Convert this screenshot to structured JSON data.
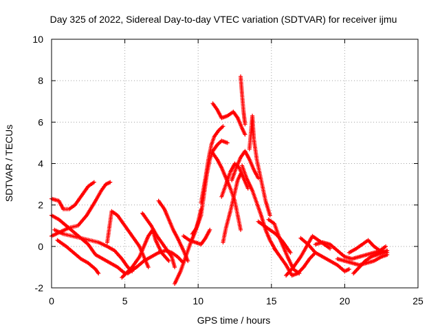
{
  "chart_data": {
    "type": "scatter",
    "title": "Day 325 of 2022, Sidereal Day-to-day VTEC variation (SDTVAR) for receiver ijmu",
    "xlabel": "GPS time / hours",
    "ylabel": "SDTVAR / TECUs",
    "xlim": [
      0,
      25
    ],
    "ylim": [
      -2,
      10
    ],
    "xticks": [
      0,
      5,
      10,
      15,
      20,
      25
    ],
    "yticks": [
      -2,
      0,
      2,
      4,
      6,
      8,
      10
    ],
    "grid": true,
    "marker": "+",
    "color": "#ff0000",
    "series": [
      {
        "name": "SDTVAR",
        "tracks": [
          [
            [
              0.0,
              2.3
            ],
            [
              0.5,
              2.2
            ],
            [
              0.8,
              1.8
            ],
            [
              1.2,
              1.8
            ],
            [
              1.6,
              2.0
            ],
            [
              2.0,
              2.4
            ],
            [
              2.5,
              2.9
            ],
            [
              2.9,
              3.1
            ]
          ],
          [
            [
              0.0,
              1.5
            ],
            [
              0.5,
              1.3
            ],
            [
              1.0,
              1.0
            ],
            [
              1.5,
              0.7
            ],
            [
              2.0,
              0.4
            ],
            [
              2.5,
              0.1
            ],
            [
              3.0,
              -0.4
            ],
            [
              3.5,
              -0.6
            ],
            [
              4.0,
              -0.8
            ],
            [
              4.5,
              -1.0
            ],
            [
              5.0,
              -1.3
            ]
          ],
          [
            [
              0.0,
              0.5
            ],
            [
              0.6,
              0.7
            ],
            [
              1.2,
              0.9
            ],
            [
              1.8,
              1.0
            ],
            [
              2.4,
              1.5
            ],
            [
              3.0,
              2.2
            ],
            [
              3.4,
              2.7
            ],
            [
              3.7,
              3.0
            ],
            [
              4.0,
              3.1
            ]
          ],
          [
            [
              0.4,
              0.3
            ],
            [
              1.0,
              0.0
            ],
            [
              1.5,
              -0.3
            ],
            [
              2.0,
              -0.6
            ],
            [
              2.5,
              -0.8
            ],
            [
              3.0,
              -1.1
            ],
            [
              3.2,
              -1.3
            ]
          ],
          [
            [
              0.2,
              0.8
            ],
            [
              0.8,
              0.6
            ],
            [
              1.4,
              0.5
            ],
            [
              2.0,
              0.4
            ],
            [
              2.6,
              0.3
            ],
            [
              3.2,
              0.2
            ],
            [
              3.8,
              0.0
            ],
            [
              4.3,
              -0.2
            ],
            [
              4.8,
              -0.6
            ],
            [
              5.2,
              -1.0
            ],
            [
              5.5,
              -1.2
            ]
          ],
          [
            [
              3.8,
              0.2
            ],
            [
              4.1,
              1.7
            ],
            [
              4.5,
              1.5
            ],
            [
              5.0,
              1.0
            ],
            [
              5.5,
              0.5
            ],
            [
              6.0,
              0.0
            ],
            [
              6.3,
              -0.5
            ],
            [
              6.6,
              -1.0
            ]
          ],
          [
            [
              4.8,
              -1.5
            ],
            [
              5.5,
              -1.0
            ],
            [
              6.0,
              -0.5
            ],
            [
              6.3,
              0.0
            ],
            [
              6.6,
              0.5
            ],
            [
              6.9,
              0.8
            ],
            [
              7.1,
              0.3
            ],
            [
              7.5,
              -0.3
            ],
            [
              8.0,
              -0.7
            ]
          ],
          [
            [
              5.2,
              -1.3
            ],
            [
              5.8,
              -1.0
            ],
            [
              6.3,
              -0.7
            ],
            [
              6.8,
              -0.5
            ],
            [
              7.3,
              -0.3
            ],
            [
              7.8,
              -0.2
            ],
            [
              8.2,
              -0.3
            ],
            [
              8.6,
              -0.5
            ],
            [
              9.0,
              -0.8
            ]
          ],
          [
            [
              6.2,
              1.6
            ],
            [
              6.5,
              1.3
            ],
            [
              6.8,
              1.0
            ],
            [
              7.2,
              0.5
            ],
            [
              7.7,
              0.0
            ],
            [
              8.2,
              -0.5
            ],
            [
              8.4,
              -1.0
            ]
          ],
          [
            [
              7.3,
              2.2
            ],
            [
              7.7,
              1.8
            ],
            [
              8.0,
              1.3
            ],
            [
              8.3,
              0.8
            ],
            [
              8.6,
              0.4
            ],
            [
              9.0,
              -0.2
            ],
            [
              9.3,
              -0.7
            ]
          ],
          [
            [
              8.4,
              -1.8
            ],
            [
              8.8,
              -1.2
            ],
            [
              9.2,
              -0.4
            ],
            [
              9.5,
              0.2
            ],
            [
              9.8,
              0.7
            ],
            [
              10.0,
              1.2
            ],
            [
              10.2,
              1.8
            ]
          ],
          [
            [
              9.0,
              0.5
            ],
            [
              9.4,
              0.3
            ],
            [
              9.8,
              0.2
            ],
            [
              10.2,
              0.1
            ],
            [
              10.5,
              0.4
            ],
            [
              10.8,
              0.8
            ]
          ],
          [
            [
              9.6,
              0.6
            ],
            [
              9.9,
              0.9
            ],
            [
              10.2,
              1.5
            ],
            [
              10.4,
              2.5
            ],
            [
              10.6,
              3.5
            ],
            [
              10.8,
              4.2
            ],
            [
              11.0,
              4.6
            ],
            [
              11.3,
              4.9
            ],
            [
              11.6,
              5.1
            ],
            [
              12.0,
              5.0
            ]
          ],
          [
            [
              10.2,
              2.1
            ],
            [
              10.5,
              3.3
            ],
            [
              10.7,
              4.2
            ],
            [
              10.9,
              4.9
            ],
            [
              11.1,
              5.3
            ],
            [
              11.4,
              5.6
            ],
            [
              11.7,
              5.8
            ]
          ],
          [
            [
              11.0,
              6.9
            ],
            [
              11.3,
              6.6
            ],
            [
              11.6,
              6.2
            ],
            [
              12.0,
              6.3
            ],
            [
              12.4,
              6.5
            ],
            [
              12.7,
              6.2
            ],
            [
              13.0,
              5.7
            ],
            [
              13.2,
              5.4
            ]
          ],
          [
            [
              11.0,
              4.5
            ],
            [
              11.3,
              4.2
            ],
            [
              11.6,
              3.8
            ],
            [
              11.9,
              3.3
            ],
            [
              12.2,
              2.8
            ],
            [
              12.5,
              2.2
            ],
            [
              12.7,
              1.5
            ],
            [
              12.9,
              0.8
            ]
          ],
          [
            [
              11.6,
              2.4
            ],
            [
              11.9,
              3.0
            ],
            [
              12.2,
              3.6
            ],
            [
              12.5,
              4.0
            ],
            [
              12.8,
              3.8
            ],
            [
              13.1,
              3.3
            ],
            [
              13.4,
              2.8
            ]
          ],
          [
            [
              11.7,
              0.2
            ],
            [
              11.9,
              0.9
            ],
            [
              12.2,
              1.7
            ],
            [
              12.5,
              2.6
            ],
            [
              12.7,
              3.2
            ],
            [
              12.9,
              3.5
            ]
          ],
          [
            [
              12.3,
              3.2
            ],
            [
              12.6,
              3.8
            ],
            [
              12.9,
              4.3
            ],
            [
              13.2,
              4.6
            ],
            [
              13.5,
              4.2
            ],
            [
              13.8,
              3.7
            ],
            [
              14.1,
              3.3
            ]
          ],
          [
            [
              12.9,
              8.2
            ],
            [
              13.0,
              7.3
            ],
            [
              13.1,
              6.5
            ],
            [
              13.2,
              5.9
            ]
          ],
          [
            [
              13.5,
              4.7
            ],
            [
              13.6,
              5.5
            ],
            [
              13.7,
              6.3
            ],
            [
              13.8,
              5.2
            ],
            [
              14.0,
              4.2
            ],
            [
              14.3,
              3.2
            ],
            [
              14.6,
              2.2
            ],
            [
              14.9,
              1.5
            ]
          ],
          [
            [
              13.0,
              3.9
            ],
            [
              13.3,
              3.3
            ],
            [
              13.7,
              2.7
            ],
            [
              14.0,
              2.1
            ],
            [
              14.3,
              1.5
            ],
            [
              14.6,
              0.8
            ],
            [
              14.9,
              0.3
            ],
            [
              15.3,
              -0.2
            ]
          ],
          [
            [
              14.1,
              1.2
            ],
            [
              14.5,
              1.0
            ],
            [
              14.9,
              0.8
            ],
            [
              15.3,
              0.6
            ],
            [
              15.7,
              0.3
            ],
            [
              16.0,
              0.0
            ],
            [
              16.3,
              -0.3
            ]
          ],
          [
            [
              14.8,
              1.3
            ],
            [
              15.2,
              1.1
            ],
            [
              15.5,
              0.5
            ],
            [
              15.8,
              0.0
            ],
            [
              16.1,
              -0.5
            ],
            [
              16.5,
              -1.1
            ],
            [
              16.9,
              -1.3
            ]
          ],
          [
            [
              15.2,
              -0.1
            ],
            [
              15.6,
              -0.5
            ],
            [
              16.0,
              -0.9
            ],
            [
              16.4,
              -1.4
            ],
            [
              16.8,
              -1.3
            ],
            [
              17.2,
              -1.0
            ],
            [
              17.6,
              -0.6
            ],
            [
              18.0,
              -0.3
            ]
          ],
          [
            [
              16.0,
              -1.4
            ],
            [
              16.5,
              -1.0
            ],
            [
              17.0,
              -0.5
            ],
            [
              17.4,
              0.0
            ],
            [
              17.8,
              0.5
            ],
            [
              18.2,
              0.3
            ],
            [
              18.6,
              0.1
            ],
            [
              19.0,
              -0.1
            ]
          ],
          [
            [
              17.0,
              0.4
            ],
            [
              17.5,
              0.1
            ],
            [
              18.0,
              -0.3
            ],
            [
              18.5,
              -0.5
            ],
            [
              19.0,
              -0.7
            ],
            [
              19.5,
              -0.9
            ],
            [
              20.0,
              -1.2
            ],
            [
              20.3,
              -1.1
            ]
          ],
          [
            [
              18.0,
              0.1
            ],
            [
              18.5,
              0.2
            ],
            [
              19.0,
              0.1
            ],
            [
              19.5,
              -0.2
            ],
            [
              20.0,
              -0.5
            ],
            [
              20.5,
              -0.6
            ],
            [
              21.0,
              -0.5
            ],
            [
              21.5,
              -0.4
            ],
            [
              22.0,
              -0.3
            ],
            [
              22.5,
              -0.2
            ],
            [
              22.9,
              -0.3
            ]
          ],
          [
            [
              19.5,
              -0.6
            ],
            [
              20.0,
              -0.7
            ],
            [
              20.5,
              -0.8
            ],
            [
              21.0,
              -0.9
            ],
            [
              21.5,
              -0.8
            ],
            [
              22.0,
              -0.7
            ],
            [
              22.5,
              -0.5
            ],
            [
              22.9,
              -0.4
            ]
          ],
          [
            [
              20.3,
              -0.3
            ],
            [
              20.8,
              -0.1
            ],
            [
              21.2,
              0.1
            ],
            [
              21.6,
              0.3
            ],
            [
              22.0,
              0.0
            ],
            [
              22.4,
              -0.2
            ],
            [
              22.8,
              0.0
            ]
          ],
          [
            [
              20.6,
              -1.3
            ],
            [
              21.0,
              -1.0
            ],
            [
              21.4,
              -0.7
            ],
            [
              21.8,
              -0.5
            ],
            [
              22.2,
              -0.4
            ],
            [
              22.6,
              -0.3
            ],
            [
              22.9,
              -0.2
            ]
          ]
        ]
      }
    ]
  }
}
